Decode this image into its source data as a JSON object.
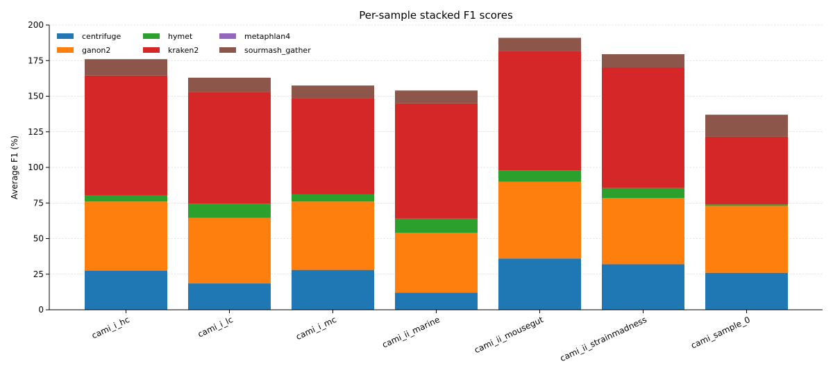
{
  "chart_data": {
    "type": "bar",
    "stacked": true,
    "title": "Per-sample stacked F1 scores",
    "xlabel": "",
    "ylabel": "Average F1 (%)",
    "ylim": [
      0,
      200
    ],
    "yticks": [
      0,
      25,
      50,
      75,
      100,
      125,
      150,
      175,
      200
    ],
    "grid": true,
    "legend_position": "top-left",
    "categories": [
      "cami_i_hc",
      "cami_i_lc",
      "cami_i_mc",
      "cami_ii_marine",
      "cami_ii_mousegut",
      "cami_ii_strainmadness",
      "cami_sample_0"
    ],
    "series": [
      {
        "name": "centrifuge",
        "color": "#1f77b4",
        "values": [
          27.5,
          18.5,
          28.0,
          12.0,
          36.0,
          32.0,
          26.0
        ]
      },
      {
        "name": "ganon2",
        "color": "#ff7f0e",
        "values": [
          48.5,
          46.0,
          48.0,
          42.0,
          54.0,
          46.5,
          47.0
        ]
      },
      {
        "name": "hymet",
        "color": "#2ca02c",
        "values": [
          4.5,
          10.0,
          5.0,
          10.0,
          8.0,
          7.0,
          1.0
        ]
      },
      {
        "name": "kraken2",
        "color": "#d62728",
        "values": [
          84.0,
          78.5,
          67.5,
          81.0,
          83.5,
          84.5,
          47.5
        ]
      },
      {
        "name": "metaphlan4",
        "color": "#9467bd",
        "values": [
          0,
          0,
          0,
          0,
          0,
          0,
          0
        ]
      },
      {
        "name": "sourmash_gather",
        "color": "#8c564b",
        "values": [
          11.5,
          10.0,
          9.0,
          9.0,
          9.5,
          9.5,
          15.5
        ]
      }
    ]
  }
}
